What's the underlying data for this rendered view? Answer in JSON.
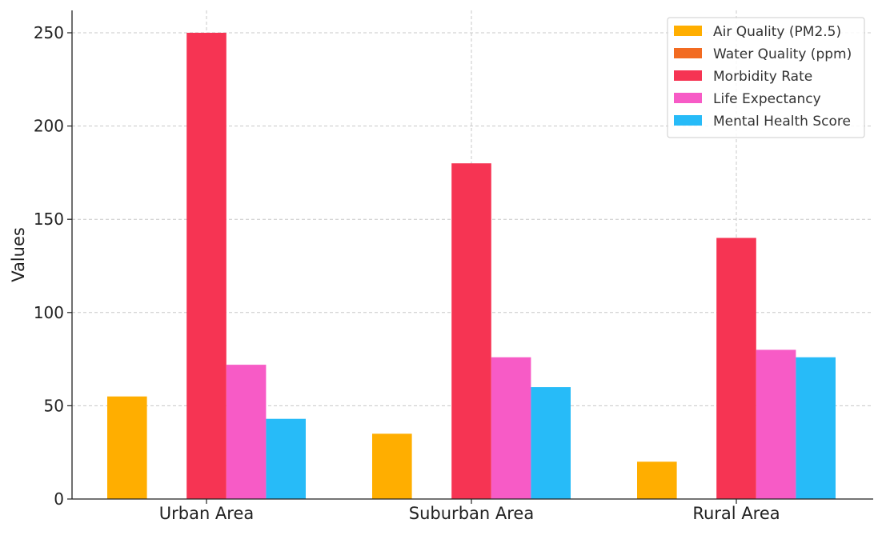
{
  "chart_data": {
    "type": "bar",
    "title": "",
    "xlabel": "",
    "ylabel": "Values",
    "ylim": [
      0,
      262
    ],
    "yticks": [
      0,
      50,
      100,
      150,
      200,
      250
    ],
    "categories": [
      "Urban Area",
      "Suburban Area",
      "Rural Area"
    ],
    "series": [
      {
        "name": "Air Quality (PM2.5)",
        "color": "#FFAE00",
        "values": [
          55,
          35,
          20
        ]
      },
      {
        "name": "Water Quality (ppm)",
        "color": "#F26B21",
        "values": [
          0,
          0,
          0
        ]
      },
      {
        "name": "Morbidity Rate",
        "color": "#F63453",
        "values": [
          250,
          180,
          140
        ]
      },
      {
        "name": "Life Expectancy",
        "color": "#F75BC6",
        "values": [
          72,
          76,
          80
        ]
      },
      {
        "name": "Mental Health Score",
        "color": "#27BBF8",
        "values": [
          43,
          60,
          76
        ]
      }
    ],
    "grid": true,
    "legend_position": "top-right"
  }
}
